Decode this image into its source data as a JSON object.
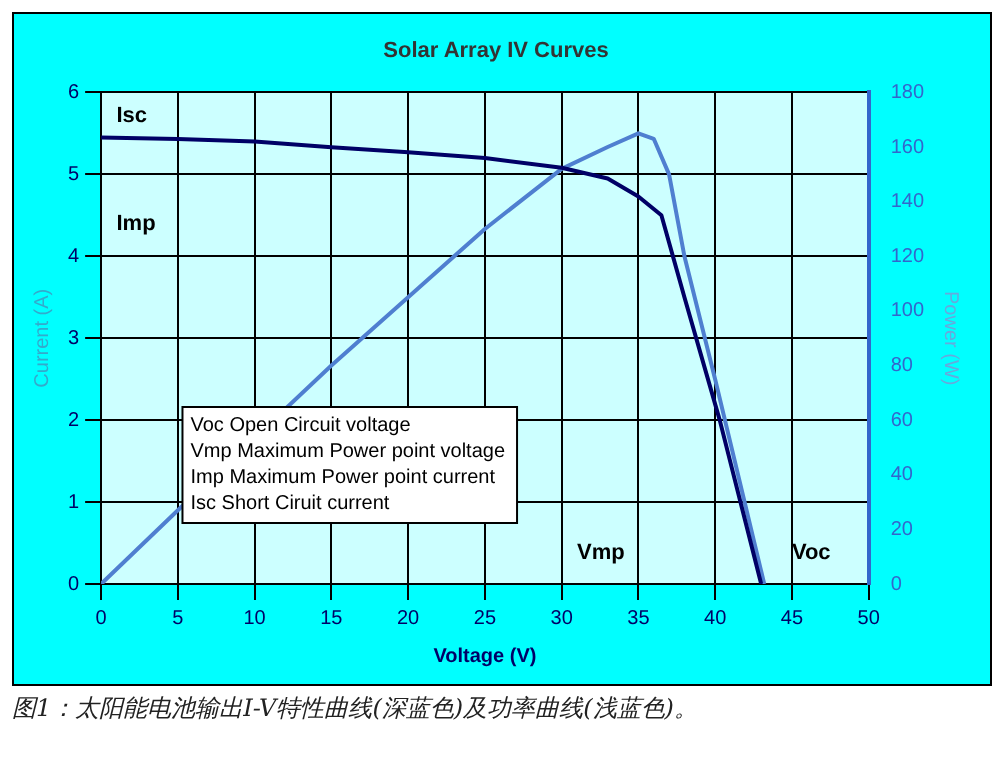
{
  "chart_data": {
    "type": "line",
    "title": "Solar Array IV Curves",
    "xlabel": "Voltage (V)",
    "ylabel": "Current (A)",
    "y2label": "Power (W)",
    "series": [
      {
        "color": "#000066",
        "x": [
          0,
          5,
          10,
          15,
          20,
          25,
          30,
          33,
          35,
          36.5,
          38,
          40.3,
          43
        ],
        "values": [
          5.45,
          5.43,
          5.4,
          5.33,
          5.27,
          5.2,
          5.08,
          4.95,
          4.73,
          4.5,
          3.5,
          2,
          0
        ]
      },
      {
        "color": "#4f7fd0",
        "axis": "y2",
        "x": [
          0,
          5,
          15,
          20,
          25,
          30,
          33,
          35,
          36,
          37,
          38,
          40,
          43.2
        ],
        "values": [
          0,
          27,
          80,
          105,
          130,
          152,
          160,
          165,
          163,
          150,
          120,
          75,
          0
        ]
      }
    ],
    "xlim": [
      0,
      50
    ],
    "xticks": [
      0,
      5,
      10,
      15,
      20,
      25,
      30,
      35,
      40,
      45,
      50
    ],
    "ylim": [
      0,
      6
    ],
    "yticks": [
      0,
      1,
      2,
      3,
      4,
      5,
      6
    ],
    "y2lim": [
      0,
      180
    ],
    "y2ticks": [
      0,
      20,
      40,
      60,
      80,
      100,
      120,
      140,
      160,
      180
    ],
    "grid": true,
    "legend": false,
    "marker": "none",
    "line_style": "solid",
    "annotations": [
      "Isc",
      "Imp",
      "Vmp",
      "Voc",
      "Voc Open Circuit voltage",
      "Vmp Maximum Power point voltage",
      "Imp Maximum Power point current",
      "Isc Short Ciruit current",
      "图1：太阳能电池输出I-V特性曲线(深蓝色)及功率曲线(浅蓝色)。"
    ]
  }
}
